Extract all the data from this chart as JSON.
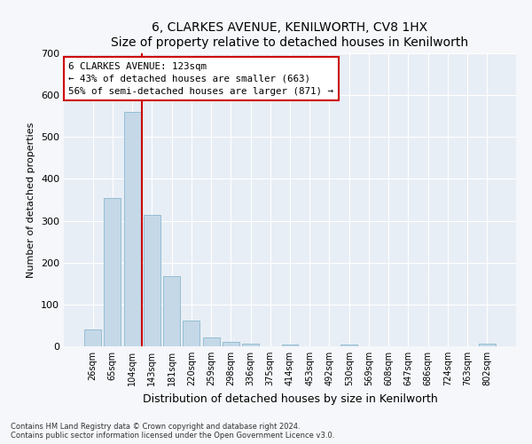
{
  "title": "6, CLARKES AVENUE, KENILWORTH, CV8 1HX",
  "subtitle": "Size of property relative to detached houses in Kenilworth",
  "xlabel": "Distribution of detached houses by size in Kenilworth",
  "ylabel": "Number of detached properties",
  "bar_color": "#c5d8e8",
  "bar_edge_color": "#7aafc8",
  "background_color": "#e8eef5",
  "fig_background_color": "#f5f7fa",
  "grid_color": "#ffffff",
  "categories": [
    "26sqm",
    "65sqm",
    "104sqm",
    "143sqm",
    "181sqm",
    "220sqm",
    "259sqm",
    "298sqm",
    "336sqm",
    "375sqm",
    "414sqm",
    "453sqm",
    "492sqm",
    "530sqm",
    "569sqm",
    "608sqm",
    "647sqm",
    "686sqm",
    "724sqm",
    "763sqm",
    "802sqm"
  ],
  "values": [
    40,
    355,
    560,
    315,
    168,
    62,
    22,
    11,
    7,
    0,
    5,
    0,
    0,
    5,
    0,
    0,
    0,
    0,
    0,
    0,
    7
  ],
  "ylim": [
    0,
    700
  ],
  "yticks": [
    0,
    100,
    200,
    300,
    400,
    500,
    600,
    700
  ],
  "property_line_x": 2.5,
  "annotation_text": "6 CLARKES AVENUE: 123sqm\n← 43% of detached houses are smaller (663)\n56% of semi-detached houses are larger (871) →",
  "annotation_box_color": "#ffffff",
  "annotation_box_edge": "#cc0000",
  "vline_color": "#cc0000",
  "footer_line1": "Contains HM Land Registry data © Crown copyright and database right 2024.",
  "footer_line2": "Contains public sector information licensed under the Open Government Licence v3.0."
}
